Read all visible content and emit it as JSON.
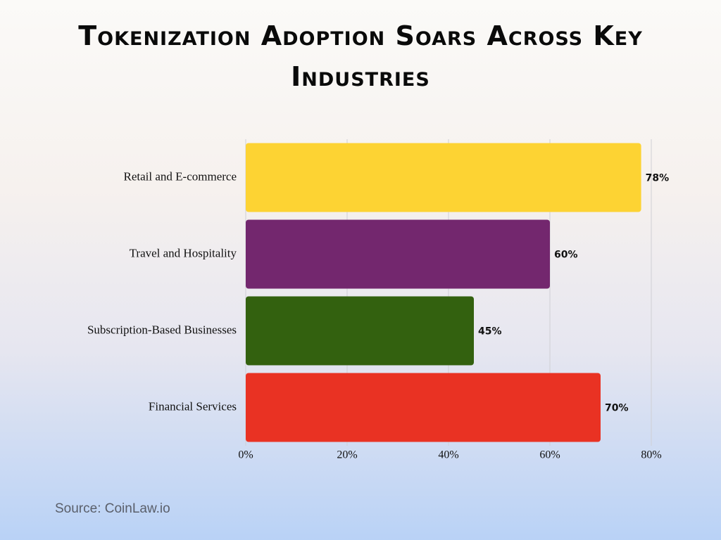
{
  "chart_data": {
    "type": "hbar",
    "title": "Tokenization Adoption Soars Across Key Industries",
    "categories": [
      "Retail and E-commerce",
      "Travel and Hospitality",
      "Subscription-Based Businesses",
      "Financial Services"
    ],
    "values": [
      78,
      60,
      45,
      70
    ],
    "value_labels": [
      "78%",
      "60%",
      "45%",
      "70%"
    ],
    "colors": [
      "#fdd333",
      "#73276e",
      "#33610f",
      "#e93223"
    ],
    "xlim": [
      0,
      80
    ],
    "xticks": [
      {
        "value": 0,
        "label": "0%"
      },
      {
        "value": 20,
        "label": "20%"
      },
      {
        "value": 40,
        "label": "40%"
      },
      {
        "value": 60,
        "label": "60%"
      },
      {
        "value": 80,
        "label": "80%"
      }
    ],
    "grid": true,
    "source": "Source: CoinLaw.io"
  }
}
